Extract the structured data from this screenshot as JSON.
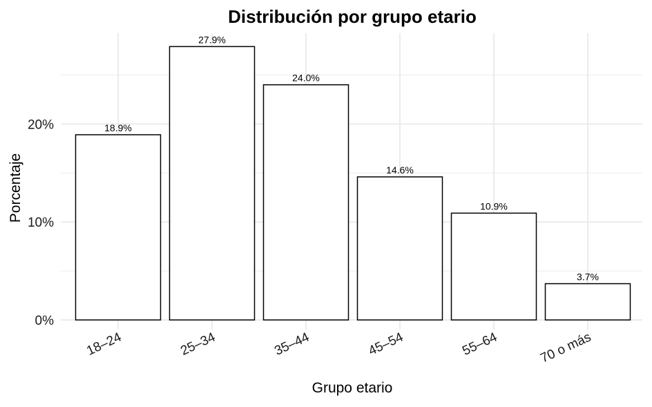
{
  "chart_data": {
    "type": "bar",
    "title": "Distribución por grupo etario",
    "xlabel": "Grupo etario",
    "ylabel": "Porcentaje",
    "categories": [
      "18–24",
      "25–34",
      "35–44",
      "45–54",
      "55–64",
      "70 o más"
    ],
    "values": [
      18.9,
      27.9,
      24.0,
      14.6,
      10.9,
      3.7
    ],
    "value_labels": [
      "18.9%",
      "27.9%",
      "24.0%",
      "14.6%",
      "10.9%",
      "3.7%"
    ],
    "y_ticks": [
      0,
      10,
      20
    ],
    "y_tick_labels": [
      "0%",
      "10%",
      "20%"
    ],
    "ylim": [
      0,
      29
    ],
    "grid": true,
    "legend": "none",
    "colors": {
      "bar_fill": "#ffffff",
      "bar_stroke": "#000000",
      "grid": "#ebebeb",
      "text": "#000000",
      "axis_text": "#1a1a1a"
    }
  }
}
